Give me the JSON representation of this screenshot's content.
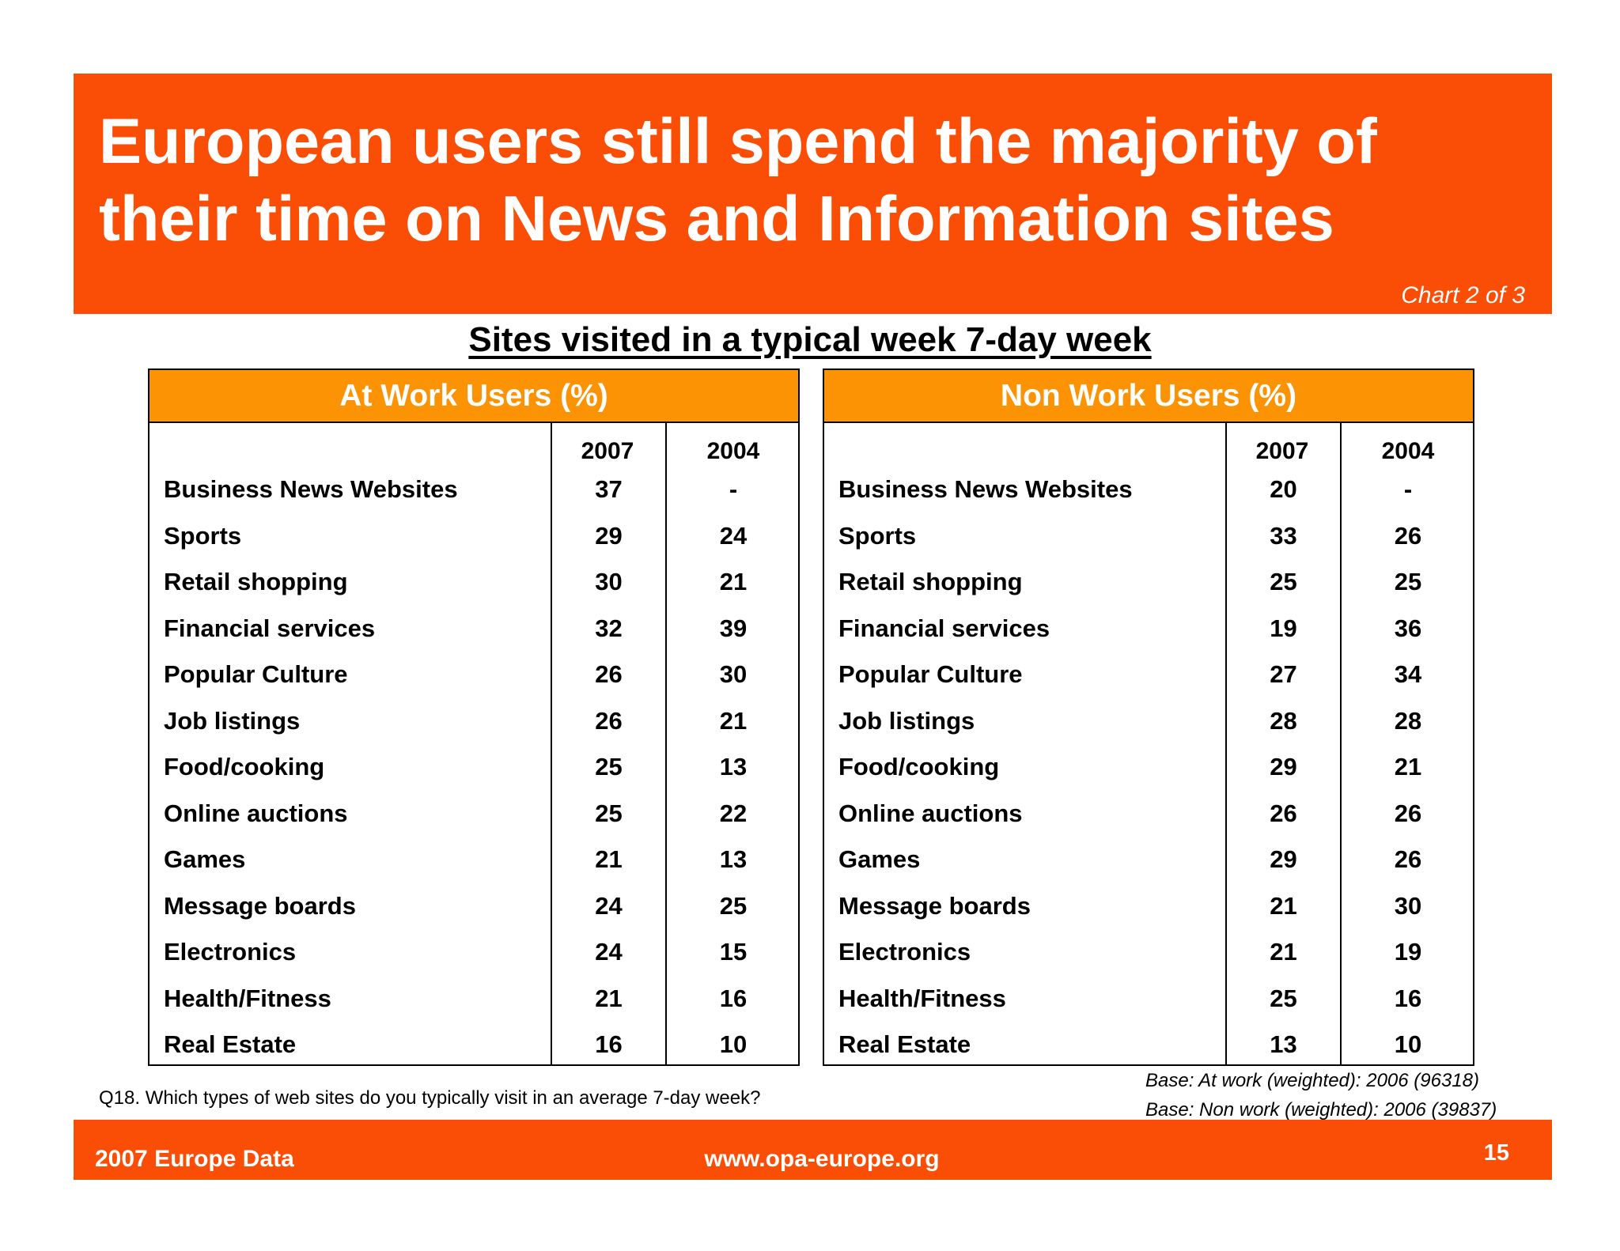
{
  "header": {
    "title_line1": "European users still spend the majority of",
    "title_line2": "their time on News and Information sites",
    "chart_number": "Chart 2 of 3"
  },
  "subtitle": "Sites visited in a typical week 7-day week",
  "colors": {
    "header_orange": "#fa4d06",
    "panel_header_orange": "#fb9304"
  },
  "panels": [
    {
      "title": "At Work Users (%)",
      "columns": [
        "2007",
        "2004"
      ],
      "rows": [
        {
          "label": "Business News Websites",
          "v2007": "37",
          "v2004": "-"
        },
        {
          "label": "Sports",
          "v2007": "29",
          "v2004": "24"
        },
        {
          "label": "Retail shopping",
          "v2007": "30",
          "v2004": "21"
        },
        {
          "label": "Financial services",
          "v2007": "32",
          "v2004": "39"
        },
        {
          "label": "Popular Culture",
          "v2007": "26",
          "v2004": "30"
        },
        {
          "label": "Job listings",
          "v2007": "26",
          "v2004": "21"
        },
        {
          "label": "Food/cooking",
          "v2007": "25",
          "v2004": "13"
        },
        {
          "label": "Online auctions",
          "v2007": "25",
          "v2004": "22"
        },
        {
          "label": "Games",
          "v2007": "21",
          "v2004": "13"
        },
        {
          "label": "Message boards",
          "v2007": "24",
          "v2004": "25"
        },
        {
          "label": "Electronics",
          "v2007": "24",
          "v2004": "15"
        },
        {
          "label": "Health/Fitness",
          "v2007": "21",
          "v2004": "16"
        },
        {
          "label": "Real Estate",
          "v2007": "16",
          "v2004": "10"
        }
      ]
    },
    {
      "title": "Non Work Users (%)",
      "columns": [
        "2007",
        "2004"
      ],
      "rows": [
        {
          "label": "Business News Websites",
          "v2007": "20",
          "v2004": "-"
        },
        {
          "label": "Sports",
          "v2007": "33",
          "v2004": "26"
        },
        {
          "label": "Retail shopping",
          "v2007": "25",
          "v2004": "25"
        },
        {
          "label": "Financial services",
          "v2007": "19",
          "v2004": "36"
        },
        {
          "label": "Popular Culture",
          "v2007": "27",
          "v2004": "34"
        },
        {
          "label": "Job listings",
          "v2007": "28",
          "v2004": "28"
        },
        {
          "label": "Food/cooking",
          "v2007": "29",
          "v2004": "21"
        },
        {
          "label": "Online auctions",
          "v2007": "26",
          "v2004": "26"
        },
        {
          "label": "Games",
          "v2007": "29",
          "v2004": "26"
        },
        {
          "label": "Message boards",
          "v2007": "21",
          "v2004": "30"
        },
        {
          "label": "Electronics",
          "v2007": "21",
          "v2004": "19"
        },
        {
          "label": "Health/Fitness",
          "v2007": "25",
          "v2004": "16"
        },
        {
          "label": "Real Estate",
          "v2007": "13",
          "v2004": "10"
        }
      ]
    }
  ],
  "question": "Q18. Which types of web sites do you typically visit in an average 7-day week?",
  "base_notes": [
    "Base: At work (weighted): 2006  (96318)",
    "Base: Non work (weighted): 2006 (39837)"
  ],
  "footer": {
    "left": "2007 Europe Data",
    "center": "www.opa-europe.org",
    "page_number": "15"
  }
}
